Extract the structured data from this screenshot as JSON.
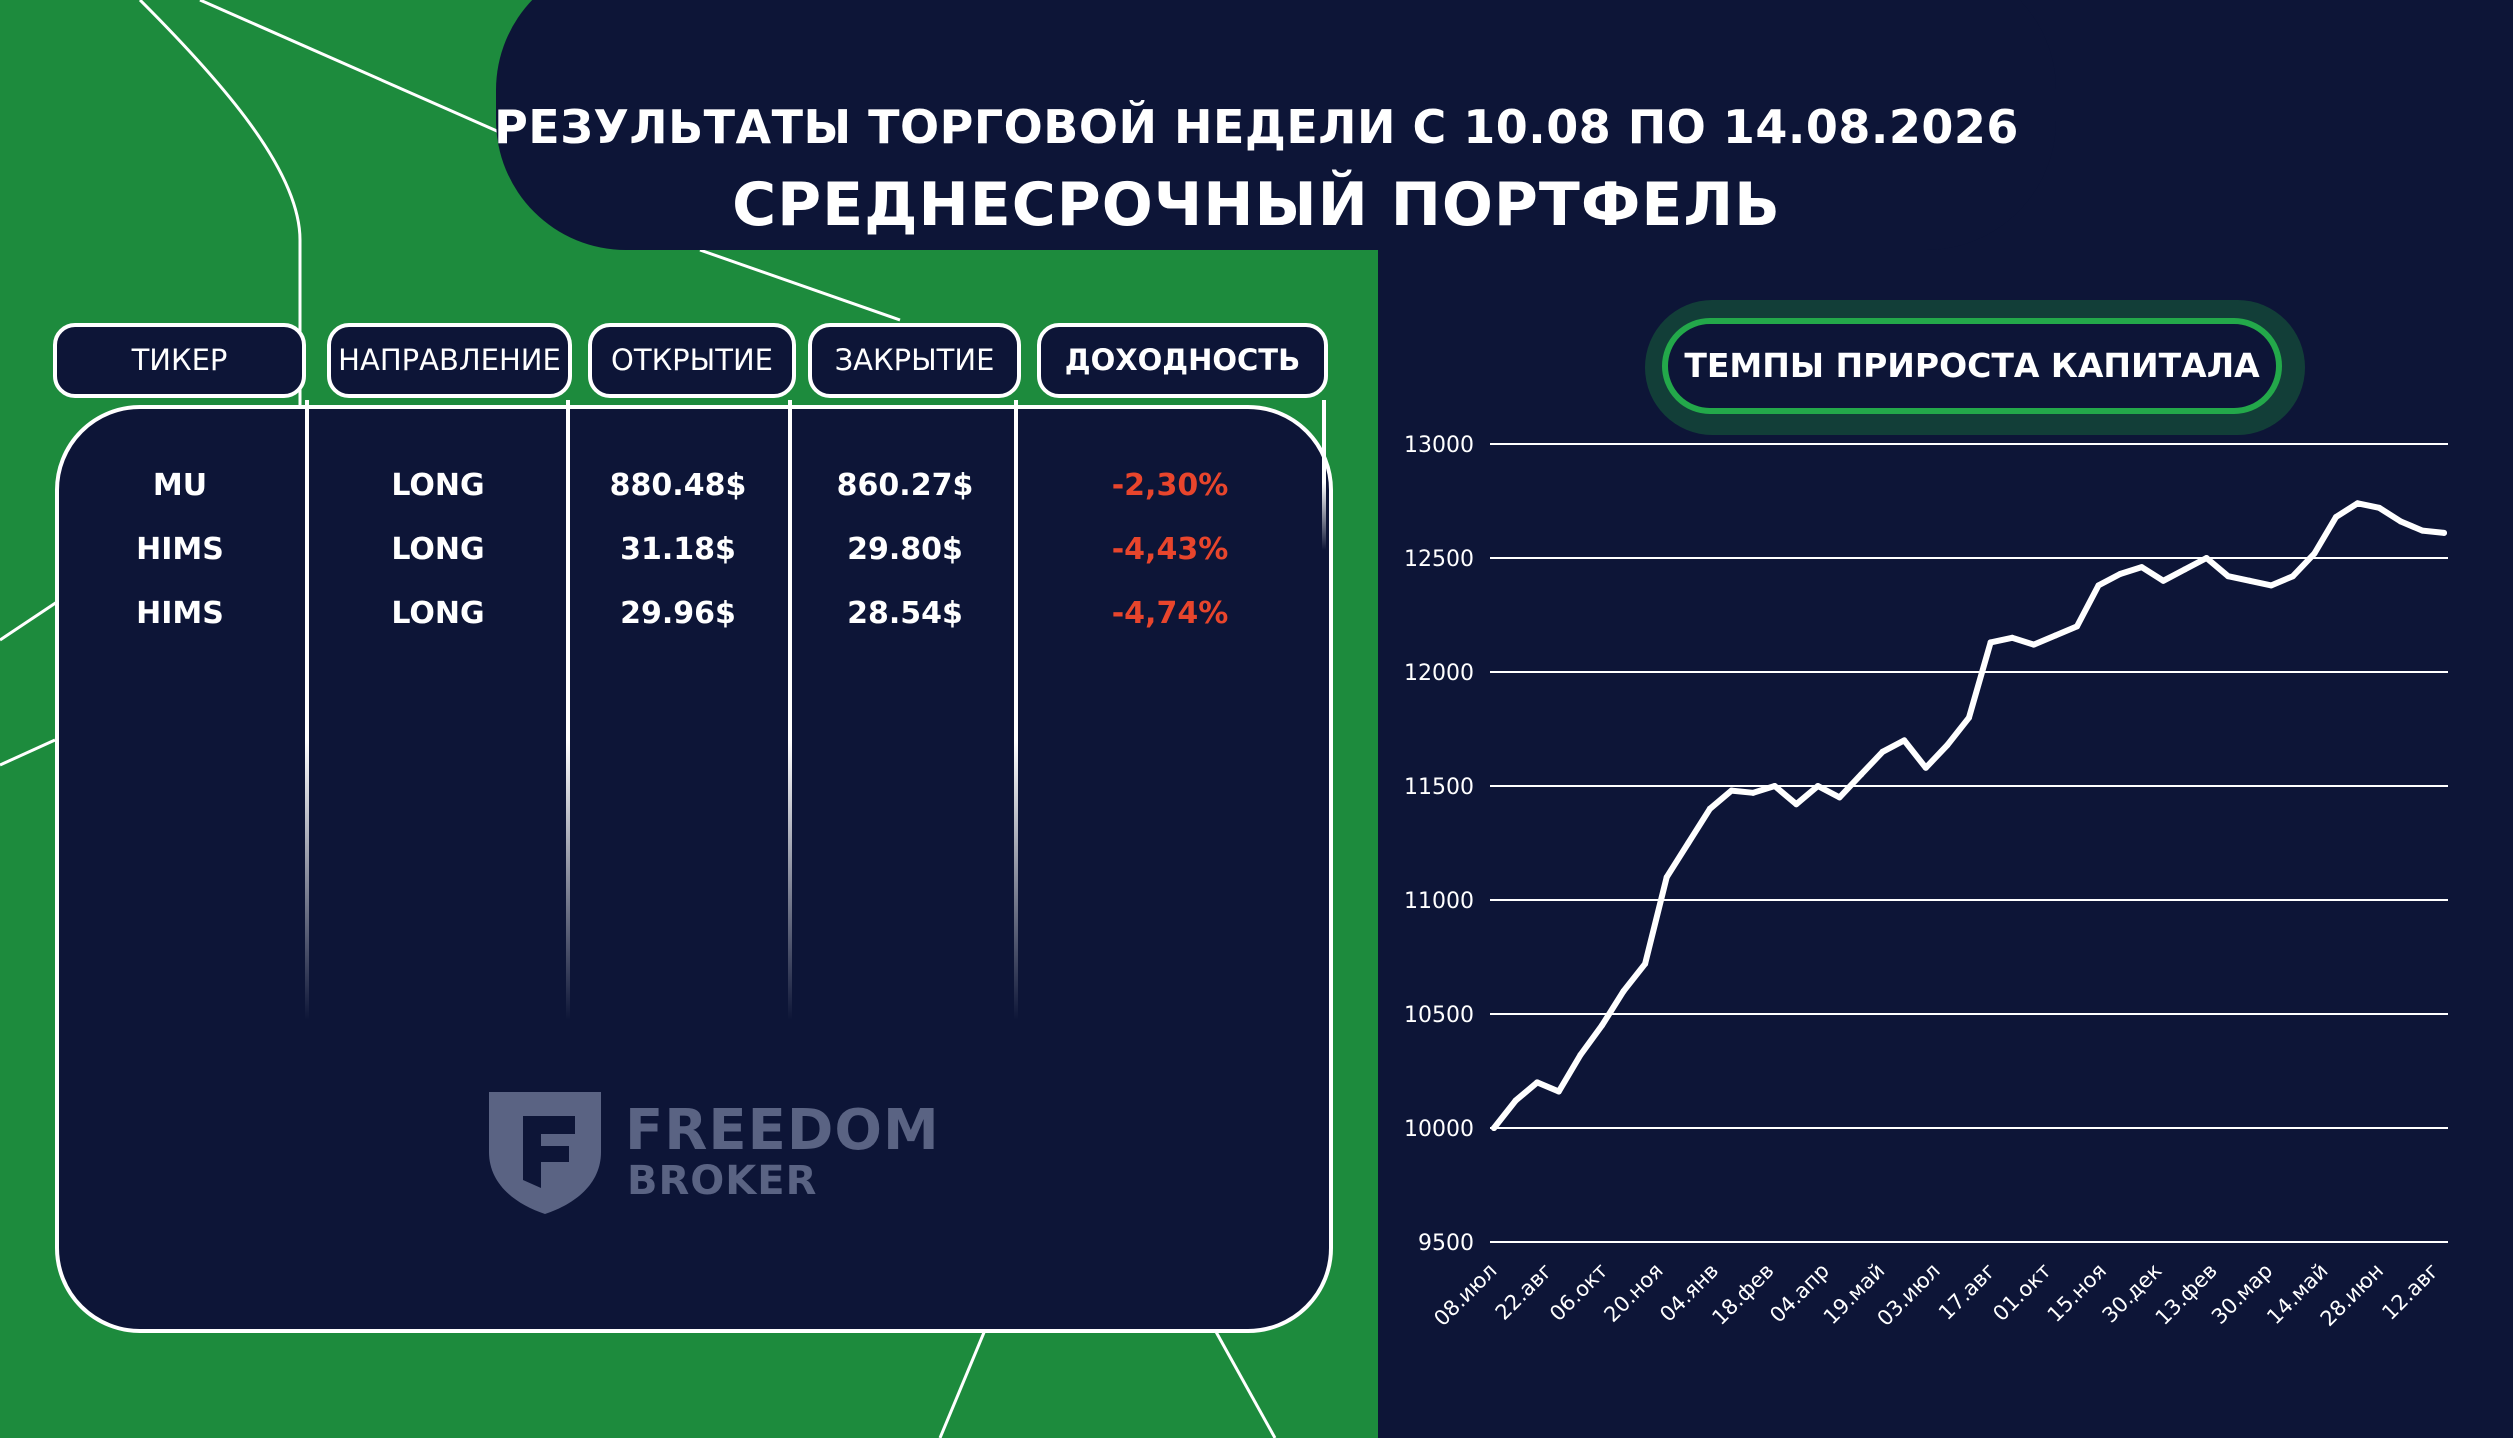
{
  "header": {
    "title_line1": "РЕЗУЛЬТАТЫ ТОРГОВОЙ НЕДЕЛИ С 10.08 ПО 14.08.2026",
    "title_line2": "СРЕДНЕСРОЧНЫЙ ПОРТФЕЛЬ"
  },
  "table": {
    "columns": [
      "ТИКЕР",
      "НАПРАВЛЕНИЕ",
      "ОТКРЫТИЕ",
      "ЗАКРЫТИЕ",
      "ДОХОДНОСТЬ"
    ],
    "rows": [
      {
        "ticker": "MU",
        "direction": "LONG",
        "open": "880.48$",
        "close": "860.27$",
        "yield": "-2,30%"
      },
      {
        "ticker": "HIMS",
        "direction": "LONG",
        "open": "31.18$",
        "close": "29.80$",
        "yield": "-4,43%"
      },
      {
        "ticker": "HIMS",
        "direction": "LONG",
        "open": "29.96$",
        "close": "28.54$",
        "yield": "-4,74%"
      }
    ]
  },
  "logo": {
    "line1": "FREEDOM",
    "line2": "BROKER"
  },
  "colors": {
    "green": "#1d8b3d",
    "navy": "#0d1537",
    "negative": "#e8452c",
    "accent": "#23a84a"
  },
  "chart_data": {
    "type": "line",
    "title": "ТЕМПЫ ПРИРОСТА КАПИТАЛА",
    "xlabel": "",
    "ylabel": "",
    "ylim": [
      9500,
      13000
    ],
    "yticks": [
      9500,
      10000,
      10500,
      11000,
      11500,
      12000,
      12500,
      13000
    ],
    "grid": true,
    "x_tick_labels": [
      "08.июл",
      "22.авг",
      "06.окт",
      "20.ноя",
      "04.янв",
      "18.фев",
      "04.апр",
      "19.май",
      "03.июл",
      "17.авг",
      "01.окт",
      "15.ноя",
      "30.дек",
      "13.фев",
      "30.мар",
      "14.май",
      "28.июн",
      "12.авг"
    ],
    "series": [
      {
        "values": [
          10000,
          10120,
          10200,
          10160,
          10320,
          10450,
          10600,
          10720,
          11100,
          11250,
          11400,
          11480,
          11470,
          11500,
          11420,
          11500,
          11450,
          11550,
          11650,
          11700,
          11580,
          11680,
          11800,
          12130,
          12150,
          12120,
          12160,
          12200,
          12380,
          12430,
          12460,
          12400,
          12450,
          12500,
          12420,
          12400,
          12380,
          12420,
          12520,
          12680,
          12740,
          12720,
          12660,
          12620,
          12610
        ]
      }
    ]
  }
}
